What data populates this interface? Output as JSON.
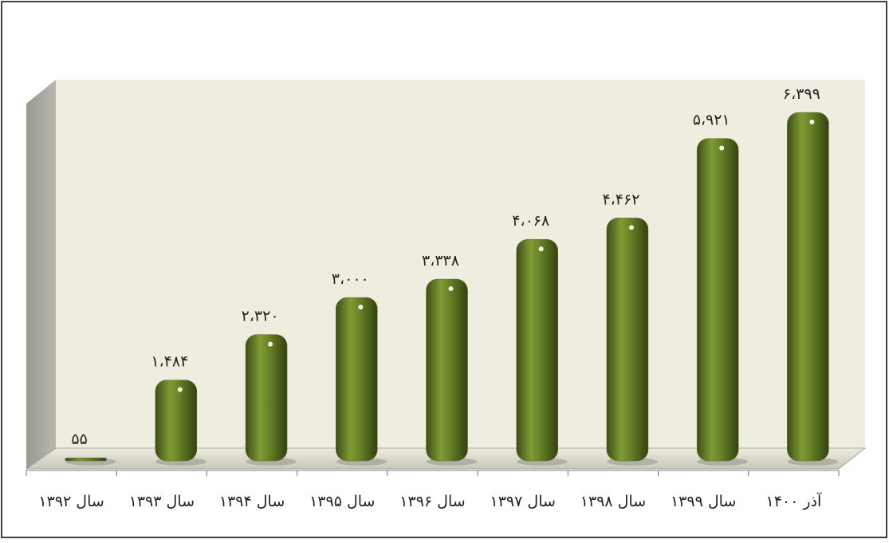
{
  "chart_data": {
    "type": "bar",
    "categories": [
      "سال ۱۳۹۲",
      "سال ۱۳۹۳",
      "سال ۱۳۹۴",
      "سال ۱۳۹۵",
      "سال ۱۳۹۶",
      "سال ۱۳۹۷",
      "سال ۱۳۹۸",
      "سال ۱۳۹۹",
      "آذر ۱۴۰۰"
    ],
    "values": [
      55,
      1484,
      2320,
      3000,
      3338,
      4068,
      4462,
      5921,
      6399
    ],
    "value_labels": [
      "۵۵",
      "۱،۴۸۴",
      "۲،۳۲۰",
      "۳،۰۰۰",
      "۳،۳۳۸",
      "۴،۰۶۸",
      "۴،۴۶۲",
      "۵،۹۲۱",
      "۶،۳۹۹"
    ],
    "color": "#5b7124",
    "ylim": [
      0,
      7000
    ]
  }
}
